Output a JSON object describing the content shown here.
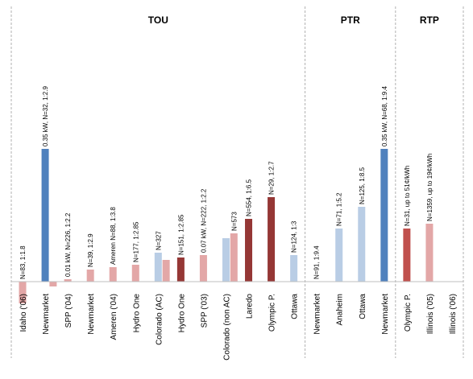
{
  "chart_data": {
    "type": "bar",
    "title": "",
    "groups": [
      {
        "label": "TOU",
        "start": 0,
        "end": 15
      },
      {
        "label": "PTR",
        "start": 15,
        "end": 19
      },
      {
        "label": "RTP",
        "start": 19,
        "end": 22
      }
    ],
    "categories": [
      "Idaho ('06)",
      "Newmarket",
      "SPP ('04)",
      "Newmarket",
      "Ameren ('04)",
      "Hydro One",
      "Colorado (AC)",
      "Hydro One",
      "SPP ('03)",
      "Colorado (non AC)",
      "Laredo",
      "Olympic P.",
      "Ottawa",
      "Newmarket",
      "Anaheim",
      "Ottawa",
      "Newmarket",
      "Olympic P.",
      "Illinois ('05)",
      "Illinois ('06)"
    ],
    "bars": [
      {
        "slot": 0,
        "value": -0.09,
        "color": "#e3a7a7",
        "label": "N=83, 1:1.8"
      },
      {
        "slot": 1,
        "value": 0.55,
        "color": "#4f81bd",
        "label": "0.35 kW, N=32, 1:2.9"
      },
      {
        "slot": 1.35,
        "value": -0.02,
        "color": "#e3a7a7",
        "label": ""
      },
      {
        "slot": 2,
        "value": 0.01,
        "color": "#e3a7a7",
        "label": "0.01 kW, N=226, 1:2.2"
      },
      {
        "slot": 3,
        "value": 0.05,
        "color": "#e3a7a7",
        "label": "N=39, 1:2.9"
      },
      {
        "slot": 4,
        "value": 0.06,
        "color": "#e3a7a7",
        "label": "Ameren N=88, 1:3.8"
      },
      {
        "slot": 5,
        "value": 0.07,
        "color": "#e3a7a7",
        "label": "N=177, 1:2.85"
      },
      {
        "slot": 6,
        "value": 0.12,
        "color": "#b9cde5",
        "label": "N=327"
      },
      {
        "slot": 6.35,
        "value": 0.09,
        "color": "#e3a7a7",
        "label": ""
      },
      {
        "slot": 7,
        "value": 0.1,
        "color": "#953735",
        "label": "N=151, 1:2.85"
      },
      {
        "slot": 8,
        "value": 0.11,
        "color": "#e3a7a7",
        "label": "0.07 kW, N=222, 1:2.2"
      },
      {
        "slot": 9,
        "value": 0.18,
        "color": "#b9cde5",
        "label": ""
      },
      {
        "slot": 9.35,
        "value": 0.2,
        "color": "#e3a7a7",
        "label": "N=573"
      },
      {
        "slot": 10,
        "value": 0.26,
        "color": "#953735",
        "label": "N=554, 1:6.5"
      },
      {
        "slot": 11,
        "value": 0.35,
        "color": "#953735",
        "label": "N=29, 1:2.7"
      },
      {
        "slot": 12,
        "value": 0.11,
        "color": "#b9cde5",
        "label": "N=124, 1:3"
      },
      {
        "slot": 13,
        "value": 0.0,
        "color": "#b9cde5",
        "label": "N=91, 1:9.4"
      },
      {
        "slot": 14,
        "value": 0.22,
        "color": "#b9cde5",
        "label": "N=71, 1:5.2"
      },
      {
        "slot": 15,
        "value": 0.31,
        "color": "#b9cde5",
        "label": "N=125, 1:8.5"
      },
      {
        "slot": 16,
        "value": 0.55,
        "color": "#4f81bd",
        "label": "0.35 kW, N=68, 1:9.4"
      },
      {
        "slot": 17,
        "value": 0.22,
        "color": "#c0504d",
        "label": "N=31, up to 51¢/kWh"
      },
      {
        "slot": 18,
        "value": 0.24,
        "color": "#e3a7a7",
        "label": "N=1359, up to 19¢/kWh"
      },
      {
        "slot": 19,
        "value": 0.0,
        "color": "#e3a7a7",
        "label": ""
      }
    ],
    "ylim": [
      -0.12,
      1.0
    ],
    "grid": false
  }
}
